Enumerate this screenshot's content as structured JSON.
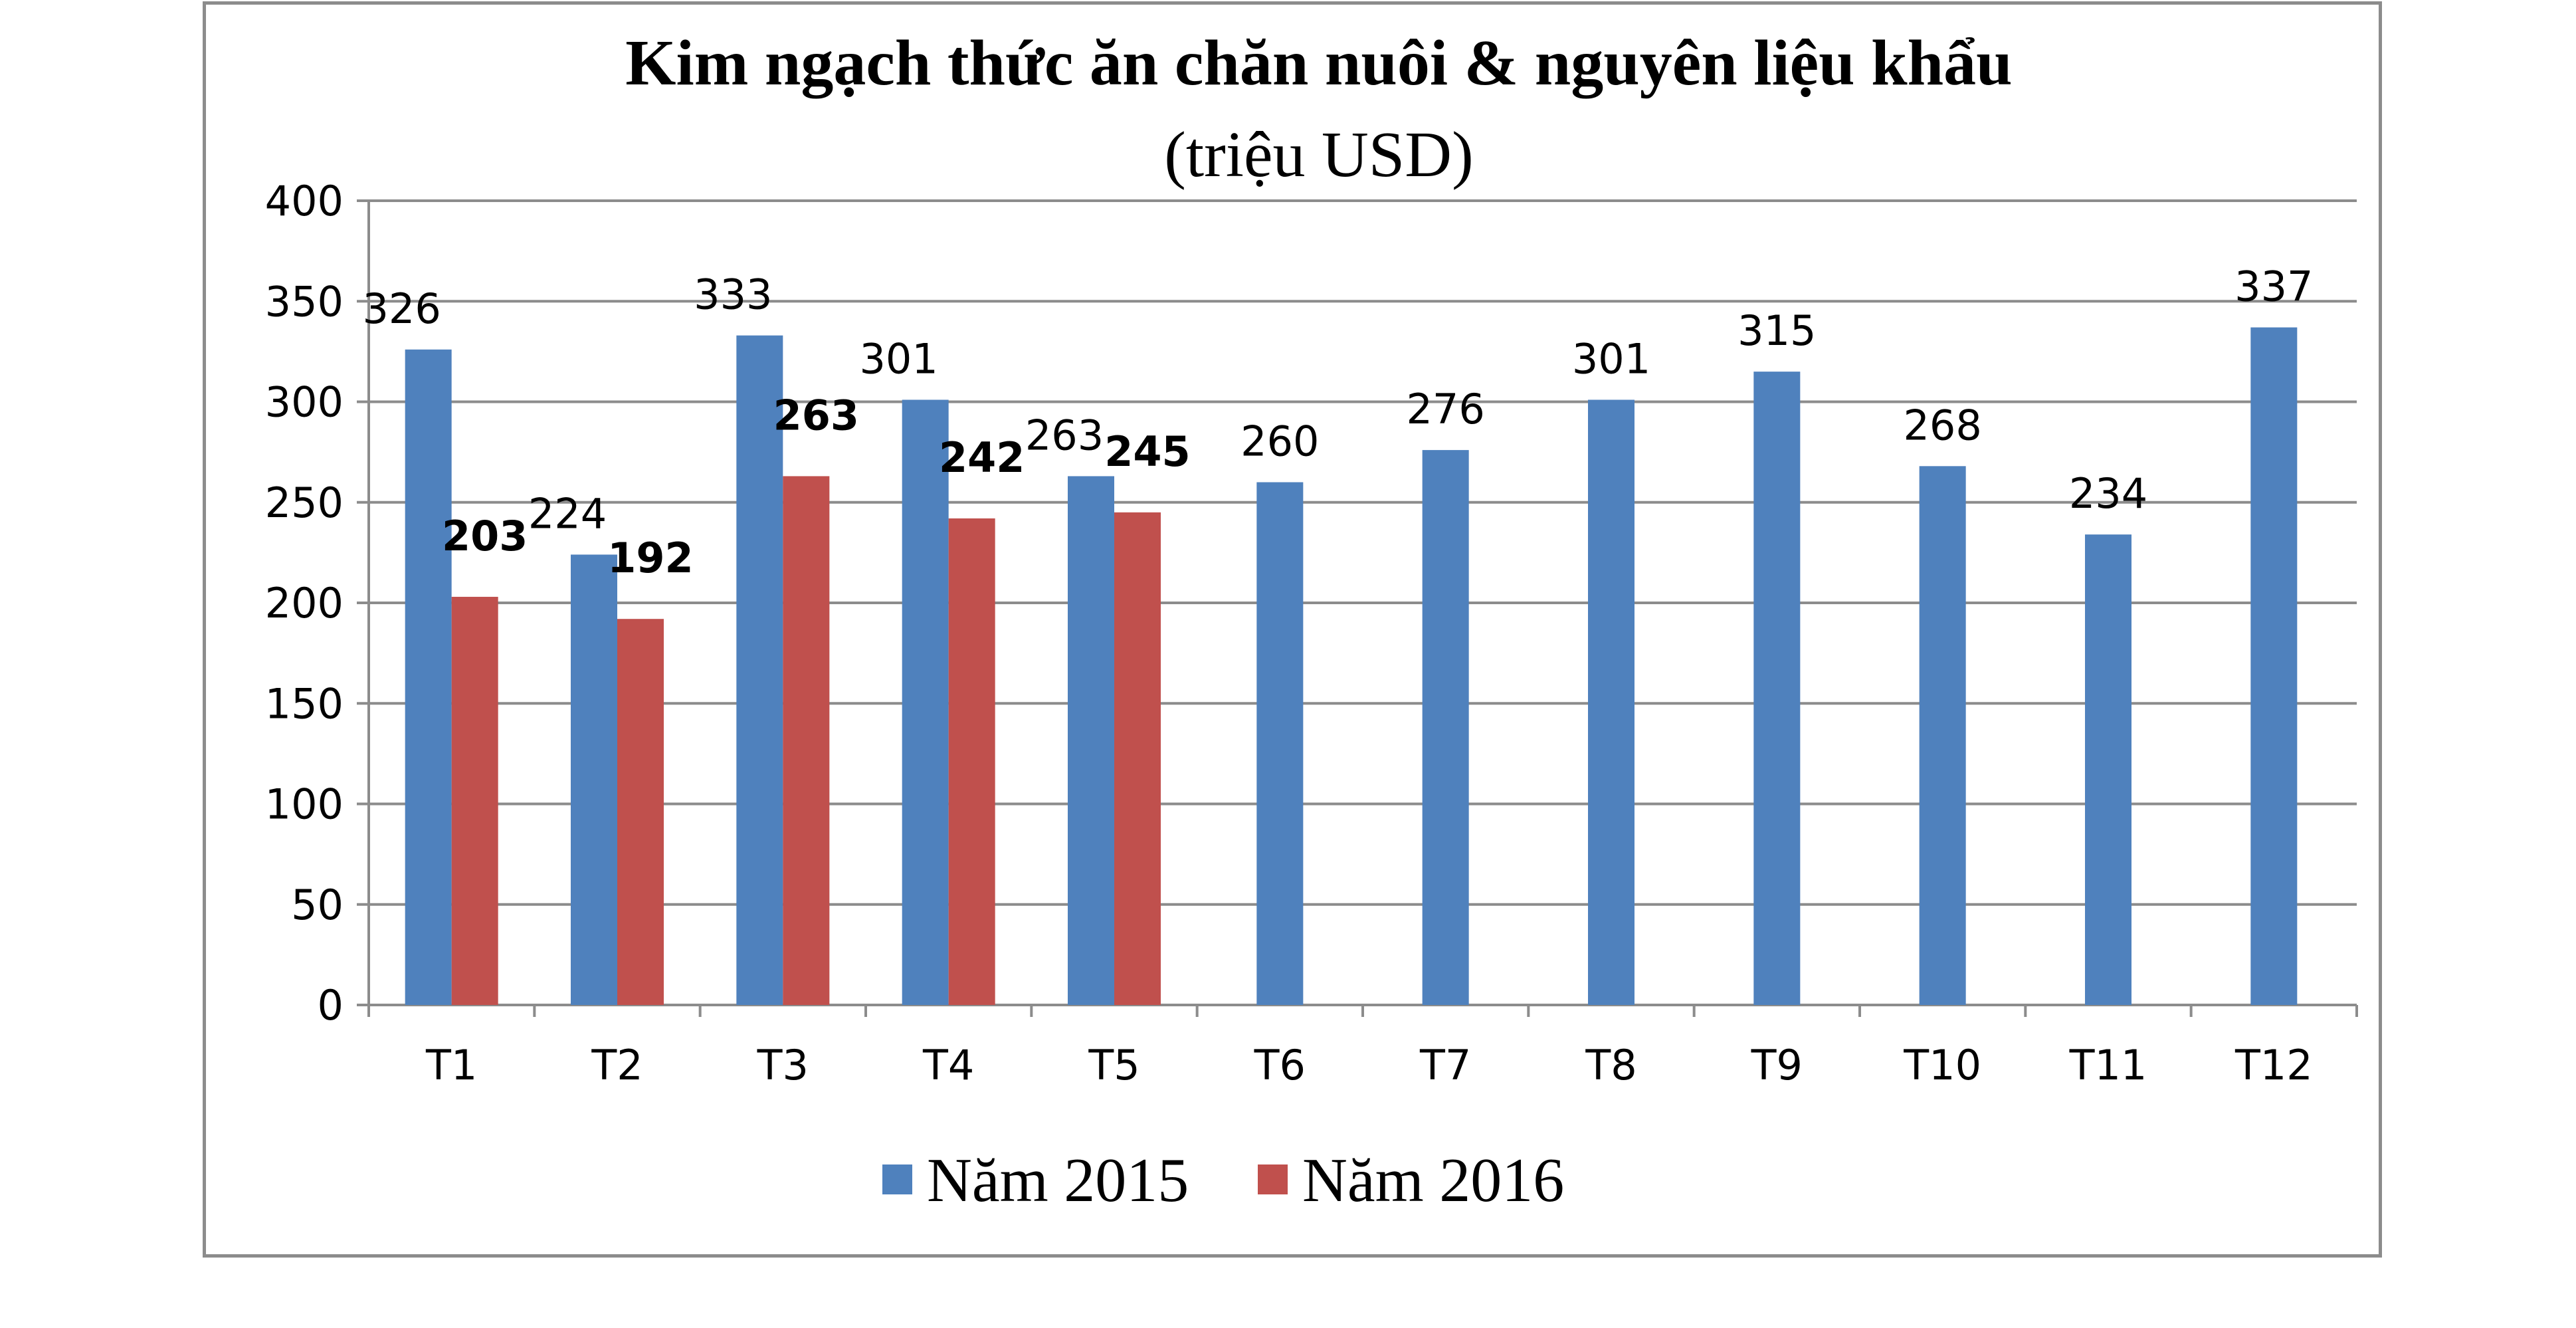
{
  "chart_data": {
    "type": "bar",
    "title": "Kim ngạch thức ăn chăn nuôi & nguyên liệu khẩu",
    "subtitle": "(triệu USD)",
    "categories": [
      "T1",
      "T2",
      "T3",
      "T4",
      "T5",
      "T6",
      "T7",
      "T8",
      "T9",
      "T10",
      "T11",
      "T12"
    ],
    "series": [
      {
        "name": "Năm 2015",
        "color": "#4f81bd",
        "values": [
          326,
          224,
          333,
          301,
          263,
          260,
          276,
          301,
          315,
          268,
          234,
          337
        ]
      },
      {
        "name": "Năm 2016",
        "color": "#c0504d",
        "values": [
          203,
          192,
          263,
          242,
          245,
          null,
          null,
          null,
          null,
          null,
          null,
          null
        ]
      }
    ],
    "yticks": [
      0,
      50,
      100,
      150,
      200,
      250,
      300,
      350,
      400
    ],
    "ylim": [
      0,
      400
    ],
    "grid": true,
    "legend_position": "bottom",
    "data_labels": true
  }
}
